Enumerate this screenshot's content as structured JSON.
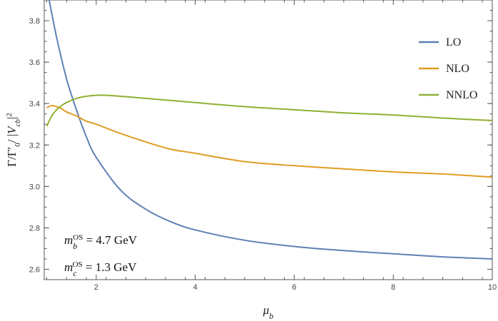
{
  "chart_data": {
    "type": "line",
    "title": "",
    "xlabel": "μ_b",
    "ylabel": "Γ/Γ′₀/|V_cb|²",
    "xlim": [
      0.95,
      10
    ],
    "ylim": [
      2.55,
      3.9
    ],
    "x_ticks": [
      2,
      4,
      6,
      8,
      10
    ],
    "y_ticks": [
      2.6,
      2.8,
      3.0,
      3.2,
      3.4,
      3.6,
      3.8
    ],
    "x_tick_labels": [
      "2",
      "4",
      "6",
      "8",
      "10"
    ],
    "y_tick_labels": [
      "2.6",
      "2.8",
      "3.0",
      "3.2",
      "3.4",
      "3.6",
      "3.8"
    ],
    "grid": false,
    "legend": "top-right",
    "series": [
      {
        "name": "LO",
        "color": "#5e81b5",
        "x": [
          1.05,
          1.2,
          1.4,
          1.6,
          1.8,
          2.0,
          2.5,
          3.0,
          3.5,
          4.0,
          5.0,
          6.0,
          7.0,
          8.0,
          9.0,
          10.0
        ],
        "y": [
          3.9,
          3.72,
          3.52,
          3.37,
          3.24,
          3.14,
          2.98,
          2.89,
          2.83,
          2.79,
          2.74,
          2.71,
          2.69,
          2.675,
          2.66,
          2.65
        ]
      },
      {
        "name": "NLO",
        "color": "#e19c24",
        "x": [
          1.0,
          1.1,
          1.2,
          1.3,
          1.4,
          1.6,
          1.8,
          2.0,
          2.5,
          3.0,
          3.5,
          4.0,
          5.0,
          6.0,
          7.0,
          8.0,
          9.0,
          10.0
        ],
        "y": [
          3.38,
          3.39,
          3.385,
          3.375,
          3.36,
          3.34,
          3.315,
          3.3,
          3.255,
          3.215,
          3.18,
          3.16,
          3.12,
          3.1,
          3.085,
          3.07,
          3.06,
          3.045
        ]
      },
      {
        "name": "NNLO",
        "color": "#8fb032",
        "x": [
          1.0,
          1.1,
          1.2,
          1.3,
          1.4,
          1.6,
          1.8,
          2.0,
          2.2,
          2.5,
          3.0,
          3.5,
          4.0,
          5.0,
          6.0,
          7.0,
          8.0,
          9.0,
          10.0
        ],
        "y": [
          3.29,
          3.34,
          3.37,
          3.39,
          3.405,
          3.425,
          3.435,
          3.44,
          3.44,
          3.435,
          3.425,
          3.415,
          3.405,
          3.385,
          3.37,
          3.355,
          3.345,
          3.33,
          3.318
        ]
      }
    ],
    "annotations": [
      {
        "text": "m_b^OS = 4.7 GeV"
      },
      {
        "text": "m_c^OS = 1.3 GeV"
      }
    ]
  }
}
